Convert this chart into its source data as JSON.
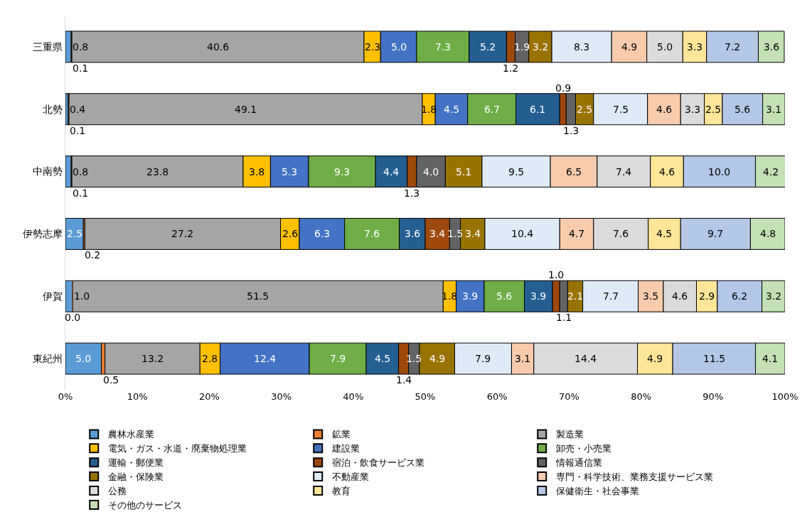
{
  "chart_data": {
    "type": "bar",
    "orientation": "horizontal",
    "stacked": true,
    "legend": "bottom",
    "categories": [
      "三重県",
      "北勢",
      "中南勢",
      "伊勢志摩",
      "伊賀",
      "東紀州"
    ],
    "xlim": [
      0,
      100
    ],
    "xticks": [
      {
        "value": 0,
        "label": "0%"
      },
      {
        "value": 10,
        "label": "10%"
      },
      {
        "value": 20,
        "label": "20%"
      },
      {
        "value": 30,
        "label": "30%"
      },
      {
        "value": 40,
        "label": "40%"
      },
      {
        "value": 50,
        "label": "50%"
      },
      {
        "value": 60,
        "label": "60%"
      },
      {
        "value": 70,
        "label": "70%"
      },
      {
        "value": 80,
        "label": "80%"
      },
      {
        "value": 90,
        "label": "90%"
      },
      {
        "value": 100,
        "label": "100%"
      }
    ],
    "series": [
      {
        "name": "農林水産業",
        "color": "#5b9bd5",
        "values": [
          0.8,
          0.4,
          0.8,
          2.5,
          1.0,
          5.0
        ],
        "value_labels": [
          "0.8",
          "0.4",
          "0.8",
          "2.5",
          "1.0",
          "5.0"
        ]
      },
      {
        "name": "鉱業",
        "color": "#ed7d31",
        "values": [
          0.1,
          0.1,
          0.1,
          0.2,
          0.0,
          0.5
        ],
        "value_labels": [
          "0.1",
          "0.1",
          "0.1",
          "0.2",
          "0.0",
          "0.5"
        ]
      },
      {
        "name": "製造業",
        "color": "#a5a5a5",
        "values": [
          40.6,
          49.1,
          23.8,
          27.2,
          51.5,
          13.2
        ],
        "value_labels": [
          "40.6",
          "49.1",
          "23.8",
          "27.2",
          "51.5",
          "13.2"
        ]
      },
      {
        "name": "電気・ガス・水道・廃棄物処理業",
        "color": "#ffc000",
        "values": [
          2.3,
          1.8,
          3.8,
          2.6,
          1.8,
          2.8
        ],
        "value_labels": [
          "2.3",
          "1.8",
          "3.8",
          "2.6",
          "1.8",
          "2.8"
        ]
      },
      {
        "name": "建設業",
        "color": "#4472c4",
        "values": [
          5.0,
          4.5,
          5.3,
          6.3,
          3.9,
          12.4
        ],
        "value_labels": [
          "5.0",
          "4.5",
          "5.3",
          "6.3",
          "3.9",
          "12.4"
        ]
      },
      {
        "name": "卸売・小売業",
        "color": "#70ad47",
        "values": [
          7.3,
          6.7,
          9.3,
          7.6,
          5.6,
          7.9
        ],
        "value_labels": [
          "7.3",
          "6.7",
          "9.3",
          "7.6",
          "5.6",
          "7.9"
        ]
      },
      {
        "name": "運輸・郵便業",
        "color": "#255e91",
        "values": [
          5.2,
          6.1,
          4.4,
          3.6,
          3.9,
          4.5
        ],
        "value_labels": [
          "5.2",
          "6.1",
          "4.4",
          "3.6",
          "3.9",
          "4.5"
        ]
      },
      {
        "name": "宿泊・飲食サービス業",
        "color": "#9e480e",
        "values": [
          1.2,
          0.9,
          1.3,
          3.4,
          1.0,
          1.4
        ],
        "value_labels": [
          "1.2",
          "0.9",
          "1.3",
          "3.4",
          "1.0",
          "1.4"
        ]
      },
      {
        "name": "情報通信業",
        "color": "#636363",
        "values": [
          1.9,
          1.3,
          4.0,
          1.5,
          1.1,
          1.5
        ],
        "value_labels": [
          "1.9",
          "1.3",
          "4.0",
          "1.5",
          "1.1",
          "1.5"
        ]
      },
      {
        "name": "金融・保険業",
        "color": "#997300",
        "values": [
          3.2,
          2.5,
          5.1,
          3.4,
          2.1,
          4.9
        ],
        "value_labels": [
          "3.2",
          "2.5",
          "5.1",
          "3.4",
          "2.1",
          "4.9"
        ]
      },
      {
        "name": "不動産業",
        "color": "#deebf7",
        "values": [
          8.3,
          7.5,
          9.5,
          10.4,
          7.7,
          7.9
        ],
        "value_labels": [
          "8.3",
          "7.5",
          "9.5",
          "10.4",
          "7.7",
          "7.9"
        ]
      },
      {
        "name": "専門・科学技術、業務支援サービス業",
        "color": "#f8cbad",
        "values": [
          4.9,
          4.6,
          6.5,
          4.7,
          3.5,
          3.1
        ],
        "value_labels": [
          "4.9",
          "4.6",
          "6.5",
          "4.7",
          "3.5",
          "3.1"
        ]
      },
      {
        "name": "公務",
        "color": "#dbdbdb",
        "values": [
          5.0,
          3.3,
          7.4,
          7.6,
          4.6,
          14.4
        ],
        "value_labels": [
          "5.0",
          "3.3",
          "7.4",
          "7.6",
          "4.6",
          "14.4"
        ]
      },
      {
        "name": "教育",
        "color": "#ffe699",
        "values": [
          3.3,
          2.5,
          4.6,
          4.5,
          2.9,
          4.9
        ],
        "value_labels": [
          "3.3",
          "2.5",
          "4.6",
          "4.5",
          "2.9",
          "4.9"
        ]
      },
      {
        "name": "保健衛生・社会事業",
        "color": "#b4c7e7",
        "values": [
          7.2,
          5.6,
          10.0,
          9.7,
          6.2,
          11.5
        ],
        "value_labels": [
          "7.2",
          "5.6",
          "10.0",
          "9.7",
          "6.2",
          "11.5"
        ]
      },
      {
        "name": "その他のサービス",
        "color": "#c5e0b4",
        "values": [
          3.6,
          3.1,
          4.2,
          4.8,
          3.2,
          4.1
        ],
        "value_labels": [
          "3.6",
          "3.1",
          "4.2",
          "4.8",
          "3.2",
          "4.1"
        ]
      }
    ]
  }
}
